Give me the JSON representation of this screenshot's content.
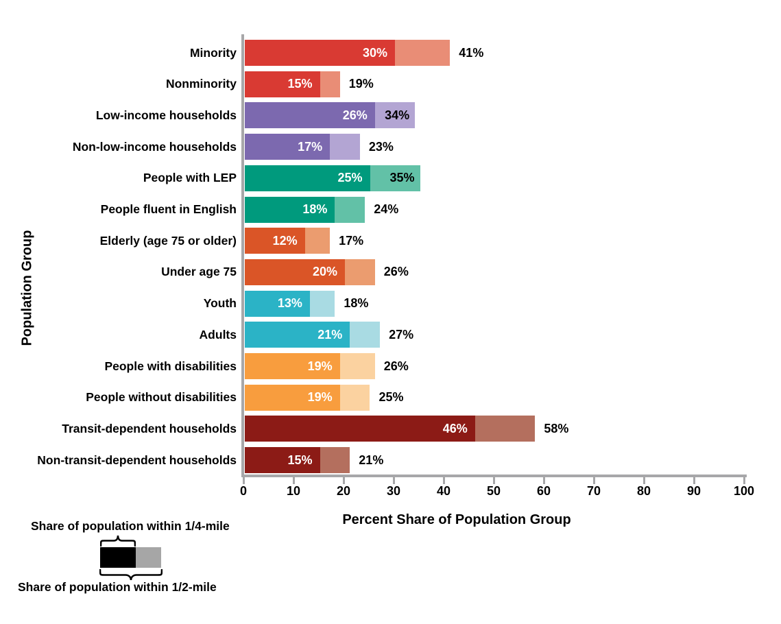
{
  "chart_data": {
    "type": "bar",
    "orientation": "horizontal",
    "xlabel": "Percent Share of Population Group",
    "ylabel": "Population Group",
    "xlim": [
      0,
      100
    ],
    "x_ticks": [
      "0",
      "10",
      "20",
      "30",
      "40",
      "50",
      "60",
      "70",
      "80",
      "90",
      "100"
    ],
    "grid": false,
    "series": [
      {
        "name": "Share of population within 1/4-mile"
      },
      {
        "name": "Share of population within 1/2-mile"
      }
    ],
    "palette": {
      "red": {
        "dark": "#d93a33",
        "light": "#e98d76"
      },
      "purple": {
        "dark": "#7c69af",
        "light": "#b3a5d3"
      },
      "teal": {
        "dark": "#009a7d",
        "light": "#62c1a7"
      },
      "orange": {
        "dark": "#da5527",
        "light": "#eb9c6f"
      },
      "cyan": {
        "dark": "#2bb3c6",
        "light": "#a9dbe3"
      },
      "amber": {
        "dark": "#f89d3e",
        "light": "#fbd2a0"
      },
      "maroon": {
        "dark": "#8c1b16",
        "light": "#b46f5e"
      }
    },
    "rows": [
      {
        "label": "Minority",
        "quarter_mile": 30,
        "half_mile": 41,
        "quarter_label": "30%",
        "half_label": "41%",
        "group": "red",
        "total_label_inside": false
      },
      {
        "label": "Nonminority",
        "quarter_mile": 15,
        "half_mile": 19,
        "quarter_label": "15%",
        "half_label": "19%",
        "group": "red",
        "total_label_inside": false
      },
      {
        "label": "Low-income households",
        "quarter_mile": 26,
        "half_mile": 34,
        "quarter_label": "26%",
        "half_label": "34%",
        "group": "purple",
        "total_label_inside": true
      },
      {
        "label": "Non-low-income households",
        "quarter_mile": 17,
        "half_mile": 23,
        "quarter_label": "17%",
        "half_label": "23%",
        "group": "purple",
        "total_label_inside": false
      },
      {
        "label": "People with LEP",
        "quarter_mile": 25,
        "half_mile": 35,
        "quarter_label": "25%",
        "half_label": "35%",
        "group": "teal",
        "total_label_inside": true
      },
      {
        "label": "People fluent in English",
        "quarter_mile": 18,
        "half_mile": 24,
        "quarter_label": "18%",
        "half_label": "24%",
        "group": "teal",
        "total_label_inside": false
      },
      {
        "label": "Elderly (age 75 or older)",
        "quarter_mile": 12,
        "half_mile": 17,
        "quarter_label": "12%",
        "half_label": "17%",
        "group": "orange",
        "total_label_inside": false
      },
      {
        "label": "Under age 75",
        "quarter_mile": 20,
        "half_mile": 26,
        "quarter_label": "20%",
        "half_label": "26%",
        "group": "orange",
        "total_label_inside": false
      },
      {
        "label": "Youth",
        "quarter_mile": 13,
        "half_mile": 18,
        "quarter_label": "13%",
        "half_label": "18%",
        "group": "cyan",
        "total_label_inside": false
      },
      {
        "label": "Adults",
        "quarter_mile": 21,
        "half_mile": 27,
        "quarter_label": "21%",
        "half_label": "27%",
        "group": "cyan",
        "total_label_inside": false
      },
      {
        "label": "People with disabilities",
        "quarter_mile": 19,
        "half_mile": 26,
        "quarter_label": "19%",
        "half_label": "26%",
        "group": "amber",
        "total_label_inside": false
      },
      {
        "label": "People without disabilities",
        "quarter_mile": 19,
        "half_mile": 25,
        "quarter_label": "19%",
        "half_label": "25%",
        "group": "amber",
        "total_label_inside": false
      },
      {
        "label": "Transit-dependent households",
        "quarter_mile": 46,
        "half_mile": 58,
        "quarter_label": "46%",
        "half_label": "58%",
        "group": "maroon",
        "total_label_inside": false
      },
      {
        "label": "Non-transit-dependent households",
        "quarter_mile": 15,
        "half_mile": 21,
        "quarter_label": "15%",
        "half_label": "21%",
        "group": "maroon",
        "total_label_inside": false
      }
    ],
    "legend": {
      "quarter_label": "Share of population within 1/4-mile",
      "half_label": "Share of population within 1/2-mile",
      "swatch_dark_color": "#000000",
      "swatch_light_color": "#a6a6a6"
    },
    "axis_color": "#a7a7a9"
  }
}
